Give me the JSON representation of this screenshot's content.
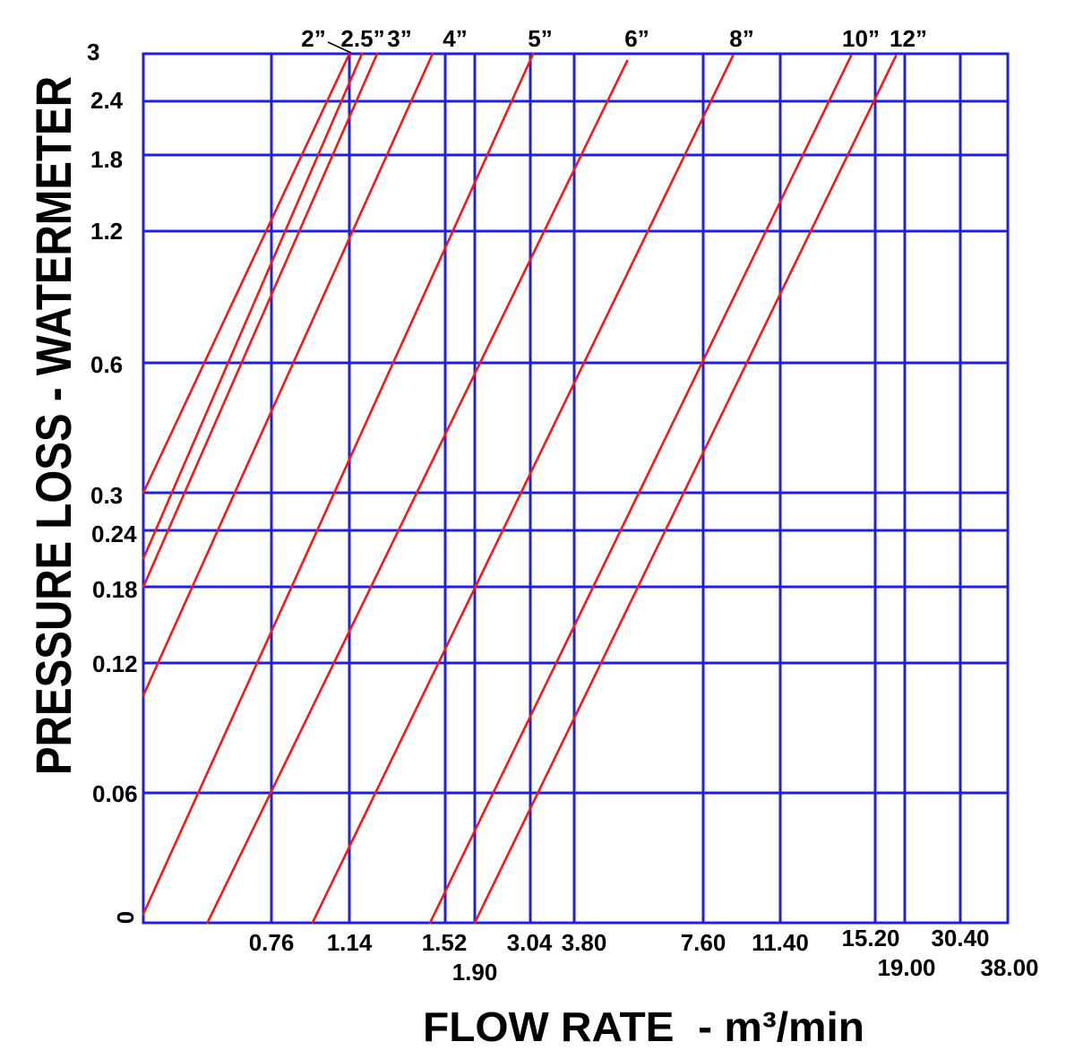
{
  "chart_data": {
    "type": "line",
    "xlabel": "FLOW RATE  - m³/min",
    "ylabel": "PRESSURE LOSS - WATERMETER",
    "xscale": "log",
    "yscale": "log",
    "xlim": [
      0.38,
      38.0
    ],
    "ylim": [
      0,
      3
    ],
    "grid": true,
    "x_ticks": [
      0.76,
      1.14,
      1.52,
      1.9,
      3.04,
      3.8,
      7.6,
      11.4,
      15.2,
      19.0,
      30.4,
      38.0
    ],
    "x_tick_labels": [
      "0.76",
      "1.14",
      "1.52",
      "1.90",
      "3.04",
      "3.80",
      "7.60",
      "11.40",
      "15.20",
      "19.00",
      "30.40",
      "38.00"
    ],
    "y_ticks": [
      0,
      0.06,
      0.12,
      0.18,
      0.24,
      0.3,
      0.6,
      1.2,
      1.8,
      2.4,
      3
    ],
    "y_tick_labels": [
      "0",
      "0.06",
      "0.12",
      "0.18",
      "0.24",
      "0.3",
      "0.6",
      "1.2",
      "1.8",
      "2.4",
      "3"
    ],
    "colors": {
      "series": "#f01a1a",
      "grid": "#2222d4",
      "text": "#000000"
    },
    "series": [
      {
        "name": "2”",
        "points": [
          [
            0.38,
            0.3
          ],
          [
            1.14,
            3.0
          ]
        ]
      },
      {
        "name": "2.5”",
        "points": [
          [
            0.38,
            0.21
          ],
          [
            1.19,
            3.0
          ]
        ]
      },
      {
        "name": "3”",
        "points": [
          [
            0.38,
            0.18
          ],
          [
            1.25,
            3.0
          ]
        ]
      },
      {
        "name": "4”",
        "points": [
          [
            0.38,
            0.105
          ],
          [
            1.47,
            3.0
          ]
        ]
      },
      {
        "name": "5”",
        "points": [
          [
            0.38,
            0.004
          ],
          [
            3.09,
            3.0
          ]
        ]
      },
      {
        "name": "6”",
        "points": [
          [
            0.57,
            0
          ],
          [
            5.36,
            2.91
          ]
        ]
      },
      {
        "name": "8”",
        "points": [
          [
            0.96,
            0
          ],
          [
            9.06,
            2.97
          ]
        ]
      },
      {
        "name": "10”",
        "points": [
          [
            1.46,
            0
          ],
          [
            14.23,
            2.97
          ]
        ]
      },
      {
        "name": "12”",
        "points": [
          [
            1.9,
            0
          ],
          [
            17.85,
            2.97
          ]
        ]
      }
    ]
  }
}
